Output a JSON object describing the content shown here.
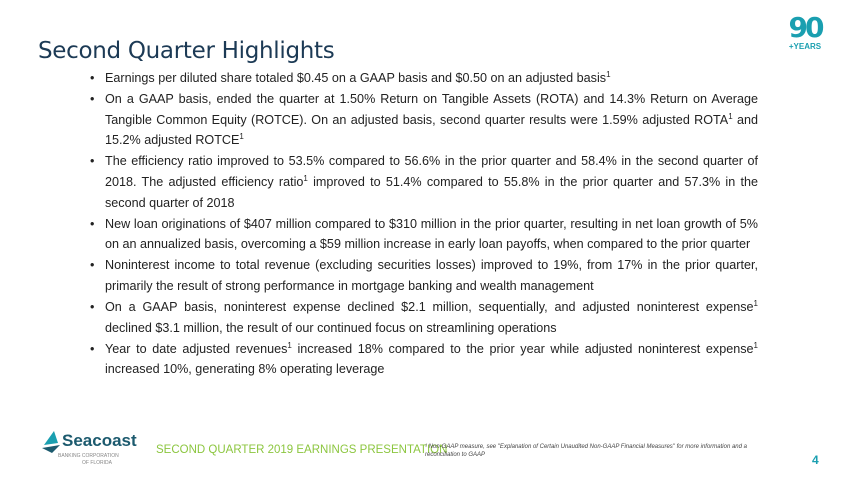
{
  "title": "Second Quarter Highlights",
  "badge": {
    "number": "90",
    "label": "+YEARS"
  },
  "bullets": [
    {
      "text": "Earnings per diluted share totaled $0.45 on a GAAP basis and $0.50 on an adjusted basis",
      "sup": "1"
    },
    {
      "parts": [
        "On a GAAP basis, ended the quarter at 1.50% Return on Tangible Assets (ROTA) and  14.3% Return on Average Tangible Common Equity (ROTCE). On an adjusted basis, second quarter results were 1.59% adjusted ROTA",
        "1",
        " and 15.2% adjusted ROTCE",
        "1"
      ]
    },
    {
      "parts": [
        "The efficiency ratio improved to 53.5% compared to 56.6% in the prior quarter and 58.4% in the second quarter of 2018. The adjusted efficiency ratio",
        "1",
        " improved to 51.4%  compared to 55.8% in the prior quarter and 57.3% in the second quarter of 2018"
      ]
    },
    {
      "text": "New loan originations of $407 million compared to $310 million in the prior quarter, resulting in net loan growth of 5% on an annualized basis, overcoming a $59 million increase in early loan payoffs, when compared to the prior quarter"
    },
    {
      "text": "Noninterest income to total revenue (excluding securities losses) improved to 19%, from 17% in the prior quarter, primarily the result of strong performance in mortgage banking and wealth management"
    },
    {
      "parts": [
        "On a GAAP basis, noninterest expense declined $2.1 million, sequentially, and adjusted noninterest expense",
        "1",
        " declined $3.1 million, the result of our continued focus on streamlining operations"
      ]
    },
    {
      "parts": [
        "Year to date adjusted revenues",
        "1",
        " increased 18% compared to the prior year while adjusted noninterest expense",
        "1",
        " increased 10%, generating 8% operating leverage"
      ]
    }
  ],
  "footer": {
    "logo_name": "Seacoast",
    "logo_sub1": "BANKING CORPORATION",
    "logo_sub2": "OF FLORIDA",
    "presentation": "SECOND QUARTER 2019 EARNINGS PRESENTATION",
    "footnote": "¹ Non-GAAP measure, see \"Explanation of Certain Unaudited Non-GAAP Financial Measures\" for more information and a reconciliation to GAAP",
    "page": "4"
  },
  "colors": {
    "teal": "#1a9fb0",
    "green": "#8cc63f",
    "navy": "#1c3a55"
  }
}
